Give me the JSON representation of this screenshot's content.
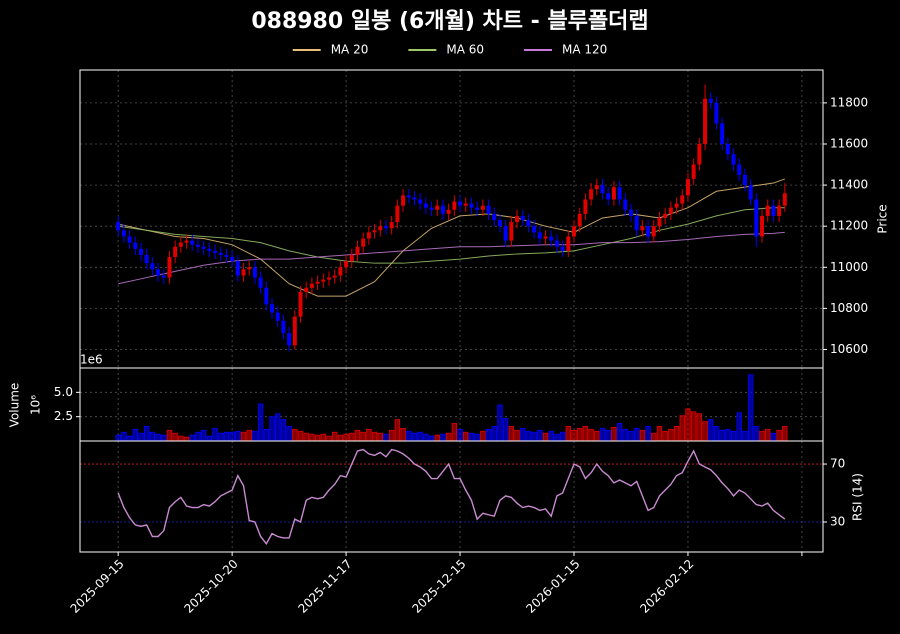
{
  "chart_data": {
    "type": "candlestick",
    "title": "088980 일봉 (6개월) 차트 - 블루폴더랩",
    "xlim": [
      -6.7,
      123.7
    ],
    "xticks": [
      {
        "value": 0,
        "label": "2025-09-15"
      },
      {
        "value": 20,
        "label": "2025-10-20"
      },
      {
        "value": 40,
        "label": "2025-11-17"
      },
      {
        "value": 60,
        "label": "2025-12-15"
      },
      {
        "value": 80,
        "label": "2026-01-15"
      },
      {
        "value": 100,
        "label": "2026-02-12"
      },
      {
        "value": 120,
        "label": null
      }
    ],
    "ylabel": "Price",
    "ylim": [
      10510,
      11960
    ],
    "yticks": [
      10600,
      10800,
      11000,
      11200,
      11400,
      11600,
      11800
    ],
    "grid": true,
    "up_color": "#e00000",
    "down_color": "#0000ff",
    "candles": [
      [
        11220,
        11250,
        11150,
        11180
      ],
      [
        11180,
        11210,
        11120,
        11150
      ],
      [
        11150,
        11180,
        11090,
        11120
      ],
      [
        11120,
        11150,
        11060,
        11090
      ],
      [
        11090,
        11120,
        11030,
        11060
      ],
      [
        11060,
        11090,
        10990,
        11020
      ],
      [
        11020,
        11050,
        10960,
        10990
      ],
      [
        10990,
        11020,
        10930,
        10960
      ],
      [
        10960,
        10990,
        10920,
        10950
      ],
      [
        10950,
        11080,
        10920,
        11050
      ],
      [
        11050,
        11130,
        11020,
        11100
      ],
      [
        11100,
        11150,
        11070,
        11120
      ],
      [
        11120,
        11160,
        11090,
        11130
      ],
      [
        11130,
        11160,
        11080,
        11110
      ],
      [
        11110,
        11140,
        11070,
        11100
      ],
      [
        11100,
        11130,
        11060,
        11090
      ],
      [
        11090,
        11120,
        11050,
        11080
      ],
      [
        11080,
        11110,
        11040,
        11070
      ],
      [
        11070,
        11100,
        11030,
        11060
      ],
      [
        11060,
        11090,
        11020,
        11050
      ],
      [
        11050,
        11080,
        11000,
        11030
      ],
      [
        11030,
        11060,
        10930,
        10960
      ],
      [
        10960,
        11020,
        10930,
        10990
      ],
      [
        10990,
        11030,
        10960,
        11000
      ],
      [
        11000,
        11030,
        10920,
        10950
      ],
      [
        10950,
        10980,
        10870,
        10900
      ],
      [
        10900,
        10930,
        10790,
        10820
      ],
      [
        10820,
        10850,
        10750,
        10780
      ],
      [
        10780,
        10810,
        10710,
        10740
      ],
      [
        10740,
        10770,
        10650,
        10680
      ],
      [
        10680,
        10710,
        10590,
        10620
      ],
      [
        10620,
        10790,
        10600,
        10760
      ],
      [
        10760,
        10910,
        10730,
        10880
      ],
      [
        10880,
        10930,
        10850,
        10900
      ],
      [
        10900,
        10950,
        10870,
        10920
      ],
      [
        10920,
        10960,
        10890,
        10930
      ],
      [
        10930,
        10970,
        10900,
        10940
      ],
      [
        10940,
        10980,
        10910,
        10950
      ],
      [
        10950,
        10990,
        10920,
        10960
      ],
      [
        10960,
        11030,
        10930,
        11000
      ],
      [
        11000,
        11060,
        10970,
        11030
      ],
      [
        11030,
        11090,
        11000,
        11060
      ],
      [
        11060,
        11130,
        11030,
        11100
      ],
      [
        11100,
        11170,
        11070,
        11140
      ],
      [
        11140,
        11200,
        11110,
        11170
      ],
      [
        11170,
        11210,
        11140,
        11180
      ],
      [
        11180,
        11230,
        11150,
        11200
      ],
      [
        11200,
        11230,
        11160,
        11190
      ],
      [
        11190,
        11250,
        11160,
        11220
      ],
      [
        11220,
        11330,
        11190,
        11300
      ],
      [
        11300,
        11380,
        11270,
        11350
      ],
      [
        11350,
        11380,
        11310,
        11340
      ],
      [
        11340,
        11370,
        11300,
        11330
      ],
      [
        11330,
        11360,
        11280,
        11310
      ],
      [
        11310,
        11340,
        11260,
        11290
      ],
      [
        11290,
        11320,
        11250,
        11280
      ],
      [
        11280,
        11330,
        11250,
        11300
      ],
      [
        11300,
        11330,
        11230,
        11260
      ],
      [
        11260,
        11310,
        11230,
        11280
      ],
      [
        11280,
        11350,
        11250,
        11320
      ],
      [
        11320,
        11350,
        11270,
        11300
      ],
      [
        11300,
        11340,
        11270,
        11310
      ],
      [
        11310,
        11340,
        11260,
        11290
      ],
      [
        11290,
        11320,
        11250,
        11280
      ],
      [
        11280,
        11330,
        11250,
        11300
      ],
      [
        11300,
        11330,
        11230,
        11260
      ],
      [
        11260,
        11290,
        11200,
        11230
      ],
      [
        11230,
        11260,
        11170,
        11200
      ],
      [
        11200,
        11230,
        11100,
        11130
      ],
      [
        11130,
        11250,
        11100,
        11220
      ],
      [
        11220,
        11280,
        11190,
        11250
      ],
      [
        11250,
        11280,
        11200,
        11230
      ],
      [
        11230,
        11260,
        11170,
        11200
      ],
      [
        11200,
        11230,
        11140,
        11170
      ],
      [
        11170,
        11200,
        11110,
        11140
      ],
      [
        11140,
        11180,
        11110,
        11150
      ],
      [
        11150,
        11180,
        11100,
        11130
      ],
      [
        11130,
        11160,
        11070,
        11100
      ],
      [
        11100,
        11130,
        11050,
        11080
      ],
      [
        11080,
        11180,
        11050,
        11150
      ],
      [
        11150,
        11230,
        11120,
        11200
      ],
      [
        11200,
        11290,
        11170,
        11260
      ],
      [
        11260,
        11360,
        11230,
        11330
      ],
      [
        11330,
        11410,
        11300,
        11380
      ],
      [
        11380,
        11430,
        11350,
        11400
      ],
      [
        11400,
        11430,
        11330,
        11360
      ],
      [
        11360,
        11390,
        11300,
        11330
      ],
      [
        11330,
        11420,
        11300,
        11390
      ],
      [
        11390,
        11420,
        11300,
        11330
      ],
      [
        11330,
        11360,
        11250,
        11280
      ],
      [
        11280,
        11310,
        11220,
        11250
      ],
      [
        11250,
        11280,
        11150,
        11180
      ],
      [
        11180,
        11230,
        11150,
        11200
      ],
      [
        11200,
        11230,
        11120,
        11150
      ],
      [
        11150,
        11230,
        11120,
        11200
      ],
      [
        11200,
        11270,
        11170,
        11240
      ],
      [
        11240,
        11290,
        11210,
        11260
      ],
      [
        11260,
        11320,
        11230,
        11290
      ],
      [
        11290,
        11340,
        11260,
        11310
      ],
      [
        11310,
        11380,
        11280,
        11350
      ],
      [
        11350,
        11460,
        11320,
        11430
      ],
      [
        11430,
        11530,
        11400,
        11500
      ],
      [
        11500,
        11630,
        11470,
        11600
      ],
      [
        11600,
        11890,
        11570,
        11820
      ],
      [
        11820,
        11850,
        11770,
        11800
      ],
      [
        11800,
        11830,
        11670,
        11700
      ],
      [
        11700,
        11730,
        11570,
        11600
      ],
      [
        11600,
        11630,
        11520,
        11550
      ],
      [
        11550,
        11580,
        11470,
        11500
      ],
      [
        11500,
        11530,
        11420,
        11450
      ],
      [
        11450,
        11480,
        11370,
        11400
      ],
      [
        11400,
        11430,
        11300,
        11330
      ],
      [
        11330,
        11360,
        11100,
        11150
      ],
      [
        11150,
        11280,
        11120,
        11250
      ],
      [
        11250,
        11330,
        11220,
        11300
      ],
      [
        11300,
        11330,
        11220,
        11250
      ],
      [
        11250,
        11330,
        11220,
        11300
      ],
      [
        11300,
        11410,
        11270,
        11360
      ]
    ],
    "ma_x": [
      0,
      5,
      10,
      15,
      20,
      25,
      30,
      35,
      40,
      45,
      50,
      55,
      60,
      65,
      70,
      75,
      80,
      85,
      90,
      95,
      100,
      105,
      110,
      115,
      117
    ],
    "series": [
      {
        "name": "MA 20",
        "color": "#e6be78",
        "values": [
          11210,
          11180,
          11150,
          11140,
          11110,
          11040,
          10920,
          10860,
          10860,
          10930,
          11080,
          11190,
          11250,
          11260,
          11240,
          11200,
          11170,
          11240,
          11260,
          11240,
          11290,
          11370,
          11390,
          11410,
          11430
        ]
      },
      {
        "name": "MA 60",
        "color": "#9cc86a",
        "values": [
          11200,
          11180,
          11160,
          11150,
          11140,
          11120,
          11080,
          11050,
          11030,
          11020,
          11020,
          11030,
          11040,
          11055,
          11065,
          11070,
          11080,
          11110,
          11140,
          11180,
          11210,
          11250,
          11280,
          11290,
          11290
        ]
      },
      {
        "name": "MA 120",
        "color": "#c47ad6",
        "values": [
          10920,
          10950,
          10980,
          11010,
          11030,
          11040,
          11040,
          11050,
          11060,
          11070,
          11080,
          11090,
          11100,
          11100,
          11105,
          11110,
          11110,
          11120,
          11120,
          11125,
          11135,
          11150,
          11160,
          11165,
          11170
        ]
      }
    ],
    "volume": {
      "ylabel": "Volume",
      "unit_label": "10⁶",
      "offset_label": "1e6",
      "ylim": [
        0,
        7.5
      ],
      "yticks": [
        2.5,
        {
          "value": 5,
          "label": "5.0"
        }
      ],
      "values": [
        0.6,
        0.9,
        0.5,
        1.2,
        0.8,
        1.5,
        0.9,
        0.7,
        0.6,
        1.1,
        0.8,
        0.5,
        0.4,
        0.6,
        0.9,
        1.1,
        0.5,
        1.3,
        0.8,
        0.9,
        0.9,
        1.0,
        0.9,
        1.1,
        1.0,
        3.8,
        1.2,
        2.5,
        2.8,
        2.2,
        1.5,
        1.2,
        1.0,
        0.8,
        0.7,
        0.6,
        0.7,
        0.5,
        0.9,
        0.6,
        0.7,
        0.8,
        1.1,
        0.9,
        1.2,
        0.9,
        0.8,
        0.7,
        1.1,
        2.2,
        1.3,
        1.0,
        0.8,
        0.9,
        0.7,
        0.5,
        0.6,
        0.7,
        0.8,
        1.8,
        1.2,
        0.9,
        0.8,
        0.7,
        1.0,
        1.2,
        1.5,
        3.7,
        2.3,
        1.5,
        1.1,
        1.3,
        1.0,
        0.9,
        1.1,
        0.8,
        1.0,
        0.7,
        0.9,
        1.5,
        1.1,
        1.3,
        1.5,
        1.2,
        1.0,
        1.3,
        1.1,
        1.4,
        1.8,
        1.2,
        1.0,
        1.3,
        1.1,
        1.5,
        0.8,
        1.5,
        1.0,
        1.2,
        1.5,
        2.6,
        3.3,
        3.0,
        2.8,
        2.0,
        2.2,
        1.5,
        1.1,
        1.2,
        1.0,
        2.9,
        1.0,
        6.8,
        1.5,
        1.0,
        1.2,
        0.8,
        1.1,
        1.5
      ]
    },
    "rsi": {
      "ylabel": "RSI (14)",
      "color": "#c88ad0",
      "ylim": [
        9.3,
        85.9
      ],
      "yticks": [
        30,
        70
      ],
      "level_colors": [
        "#2020d0",
        "#d02020"
      ],
      "values": [
        50,
        40,
        33,
        28,
        27,
        28,
        20,
        20,
        24,
        40,
        44,
        47,
        41,
        40,
        40,
        42,
        41,
        44,
        48,
        50,
        52,
        62,
        55,
        31,
        30,
        20,
        15,
        22,
        20,
        19,
        19,
        32,
        30,
        45,
        47,
        46,
        47,
        52,
        56,
        62,
        61,
        70,
        79,
        80,
        77,
        76,
        78,
        75,
        80,
        79,
        77,
        74,
        70,
        68,
        65,
        60,
        60,
        65,
        70,
        60,
        60,
        52,
        45,
        32,
        36,
        35,
        34,
        45,
        48,
        47,
        43,
        40,
        41,
        40,
        38,
        39,
        34,
        48,
        50,
        60,
        70,
        68,
        60,
        64,
        70,
        65,
        62,
        57,
        59,
        57,
        55,
        58,
        48,
        38,
        40,
        48,
        52,
        56,
        62,
        64,
        72,
        79,
        70,
        68,
        66,
        62,
        57,
        53,
        48,
        52,
        50,
        46,
        42,
        41,
        43,
        38,
        35,
        32
      ]
    }
  }
}
